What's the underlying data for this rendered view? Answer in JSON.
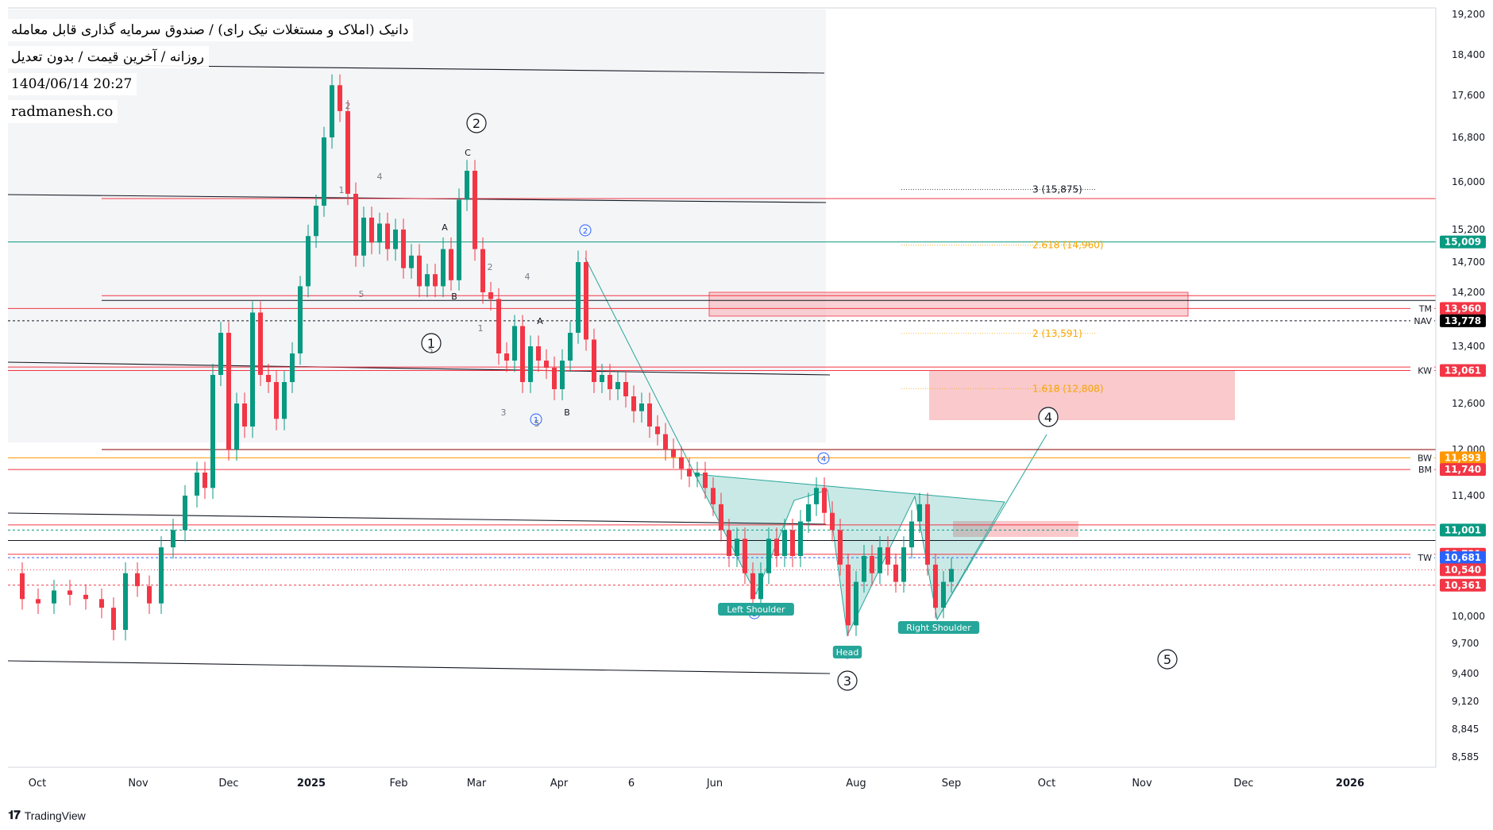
{
  "legend": {
    "title": "دانیک (املاک و مستغلات نیک رای) / صندوق سرمایه گذاری قابل معامله",
    "subtitle": "روزانه / آخرین قیمت / بدون تعدیل",
    "datetime": "1404/06/14 20:27",
    "site": "radmanesh.co"
  },
  "footer": {
    "brand": "TradingView",
    "logo": "tradingview-logo-icon"
  },
  "chart_data": {
    "type": "candlestick",
    "y_ticks": [
      19200,
      18400,
      17600,
      16800,
      16000,
      15200,
      14700,
      14200,
      13400,
      12600,
      12000,
      11400,
      10000,
      9700,
      9400,
      9120,
      8845,
      8585
    ],
    "y_tick_labels": [
      "19,200",
      "18,400",
      "17,600",
      "16,800",
      "16,000",
      "15,200",
      "14,700",
      "14,200",
      "13,400",
      "12,600",
      "12,000",
      "11,400",
      "10,000",
      "9,700",
      "9,400",
      "9,120",
      "8,845",
      "8,585"
    ],
    "x_ticks": [
      "Oct",
      "Nov",
      "Dec",
      "2025",
      "Feb",
      "Mar",
      "Apr",
      "6",
      "Jun",
      "Aug",
      "Sep",
      "Oct",
      "Nov",
      "Dec",
      "2026"
    ],
    "ylim": [
      8500,
      19300
    ],
    "price_badges": [
      {
        "value": 15009,
        "label": "15,009",
        "color": "#089981",
        "tag": ""
      },
      {
        "value": 13960,
        "label": "13,960",
        "color": "#f23645",
        "tag": "TM"
      },
      {
        "value": 13778,
        "label": "13,778",
        "color": "#000000",
        "tag": "NAV"
      },
      {
        "value": 13061,
        "label": "13,061",
        "color": "#f23645",
        "tag": "KW"
      },
      {
        "value": 11893,
        "label": "11,893",
        "color": "#ff9800",
        "tag": "BW"
      },
      {
        "value": 11740,
        "label": "11,740",
        "color": "#f23645",
        "tag": "BM"
      },
      {
        "value": 11001,
        "label": "11,001",
        "color": "#089981",
        "tag": ""
      },
      {
        "value": 10721,
        "label": "10,721",
        "color": "#f23645",
        "tag": ""
      },
      {
        "value": 10681,
        "label": "10,681",
        "color": "#2962ff",
        "tag": "TW"
      },
      {
        "value": 10540,
        "label": "10,540",
        "color": "#f23645",
        "tag": ""
      },
      {
        "value": 10361,
        "label": "10,361",
        "color": "#f23645",
        "tag": ""
      }
    ],
    "fib_levels": [
      {
        "ratio": "3",
        "value": 15875,
        "label": "3 (15,875)",
        "color": "#131722"
      },
      {
        "ratio": "2.618",
        "value": 14960,
        "label": "2.618 (14,960)",
        "color": "#f7a600"
      },
      {
        "ratio": "2",
        "value": 13591,
        "label": "2 (13,591)",
        "color": "#f7a600"
      },
      {
        "ratio": "1.618",
        "value": 12808,
        "label": "1.618 (12,808)",
        "color": "#f7a600"
      }
    ],
    "wave_labels": [
      "①",
      "②",
      "③",
      "④",
      "⑤"
    ],
    "subwave_labels": [
      "1",
      "2",
      "3",
      "4",
      "5",
      "A",
      "B",
      "C"
    ],
    "pattern_labels": [
      "Left Shoulder",
      "Head",
      "Right Shoulder"
    ],
    "colors": {
      "up": "#089981",
      "down": "#f23645",
      "pattern": "#26a69a",
      "zone": "#f7b2b7"
    }
  }
}
